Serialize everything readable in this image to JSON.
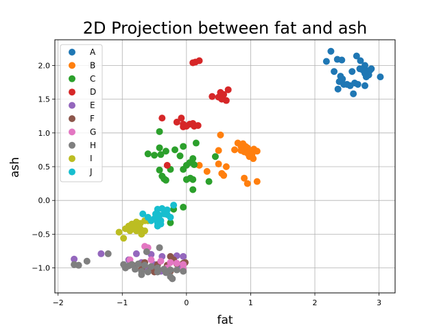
{
  "chart_data": {
    "type": "scatter",
    "title": "2D Projection between fat and ash",
    "xlabel": "fat",
    "ylabel": "ash",
    "xlim": [
      -2.05,
      3.25
    ],
    "ylim": [
      -1.37,
      2.38
    ],
    "xticks": [
      -2,
      -1,
      0,
      1,
      2,
      3
    ],
    "xtick_labels": [
      "−2",
      "−1",
      "0",
      "1",
      "2",
      "3"
    ],
    "yticks": [
      -1.0,
      -0.5,
      0.0,
      0.5,
      1.0,
      1.5,
      2.0
    ],
    "ytick_labels": [
      "−1.0",
      "−0.5",
      "0.0",
      "0.5",
      "1.0",
      "1.5",
      "2.0"
    ],
    "grid": true,
    "legend_position": "top-left",
    "series": [
      {
        "name": "A",
        "color": "#1f77b4",
        "points": [
          [
            2.25,
            2.21
          ],
          [
            2.18,
            2.06
          ],
          [
            2.35,
            2.09
          ],
          [
            2.42,
            2.08
          ],
          [
            2.65,
            2.14
          ],
          [
            2.71,
            2.07
          ],
          [
            2.78,
            2.0
          ],
          [
            2.3,
            1.91
          ],
          [
            2.58,
            1.91
          ],
          [
            2.7,
            1.95
          ],
          [
            2.75,
            1.93
          ],
          [
            2.82,
            1.92
          ],
          [
            2.86,
            1.93
          ],
          [
            2.78,
            1.88
          ],
          [
            2.84,
            1.86
          ],
          [
            2.8,
            1.83
          ],
          [
            2.4,
            1.84
          ],
          [
            2.43,
            1.8
          ],
          [
            2.38,
            1.76
          ],
          [
            2.45,
            1.72
          ],
          [
            2.55,
            1.7
          ],
          [
            2.62,
            1.74
          ],
          [
            2.67,
            1.72
          ],
          [
            2.78,
            1.7
          ],
          [
            2.36,
            1.65
          ],
          [
            2.6,
            1.58
          ],
          [
            3.02,
            1.83
          ],
          [
            2.5,
            1.72
          ],
          [
            2.88,
            1.95
          ]
        ]
      },
      {
        "name": "B",
        "color": "#ff7f0e",
        "points": [
          [
            0.53,
            0.97
          ],
          [
            0.8,
            0.85
          ],
          [
            0.88,
            0.84
          ],
          [
            0.92,
            0.8
          ],
          [
            0.85,
            0.8
          ],
          [
            0.95,
            0.78
          ],
          [
            0.75,
            0.75
          ],
          [
            1.0,
            0.74
          ],
          [
            1.05,
            0.76
          ],
          [
            1.1,
            0.73
          ],
          [
            0.9,
            0.72
          ],
          [
            0.95,
            0.7
          ],
          [
            1.02,
            0.68
          ],
          [
            0.98,
            0.65
          ],
          [
            1.04,
            0.62
          ],
          [
            0.5,
            0.74
          ],
          [
            0.2,
            0.52
          ],
          [
            0.5,
            0.54
          ],
          [
            0.62,
            0.5
          ],
          [
            0.32,
            0.43
          ],
          [
            0.55,
            0.4
          ],
          [
            0.58,
            0.37
          ],
          [
            0.9,
            0.33
          ],
          [
            0.95,
            0.25
          ],
          [
            1.1,
            0.28
          ],
          [
            0.85,
            0.74
          ]
        ]
      },
      {
        "name": "C",
        "color": "#2ca02c",
        "points": [
          [
            -0.42,
            1.02
          ],
          [
            -0.42,
            0.78
          ],
          [
            -0.32,
            0.73
          ],
          [
            -0.18,
            0.75
          ],
          [
            -0.05,
            0.8
          ],
          [
            0.15,
            0.85
          ],
          [
            -0.6,
            0.69
          ],
          [
            -0.5,
            0.67
          ],
          [
            -0.4,
            0.68
          ],
          [
            -0.1,
            0.66
          ],
          [
            0.1,
            0.62
          ],
          [
            0.05,
            0.56
          ],
          [
            0.45,
            0.65
          ],
          [
            0.12,
            0.53
          ],
          [
            0.0,
            0.52
          ],
          [
            -0.05,
            0.46
          ],
          [
            -0.42,
            0.45
          ],
          [
            -0.25,
            0.46
          ],
          [
            -0.38,
            0.36
          ],
          [
            -0.35,
            0.32
          ],
          [
            -0.32,
            0.3
          ],
          [
            0.0,
            0.31
          ],
          [
            0.06,
            0.33
          ],
          [
            0.1,
            0.31
          ],
          [
            0.35,
            0.28
          ],
          [
            0.1,
            0.16
          ],
          [
            -0.05,
            -0.1
          ],
          [
            -0.2,
            -0.13
          ],
          [
            -0.25,
            -0.33
          ]
        ]
      },
      {
        "name": "D",
        "color": "#d62728",
        "points": [
          [
            0.1,
            2.04
          ],
          [
            0.14,
            2.05
          ],
          [
            0.2,
            2.07
          ],
          [
            0.53,
            1.6
          ],
          [
            0.58,
            1.57
          ],
          [
            0.65,
            1.64
          ],
          [
            0.4,
            1.54
          ],
          [
            0.5,
            1.53
          ],
          [
            0.55,
            1.5
          ],
          [
            0.62,
            1.48
          ],
          [
            -0.38,
            1.22
          ],
          [
            -0.08,
            1.22
          ],
          [
            -0.15,
            1.16
          ],
          [
            -0.05,
            1.13
          ],
          [
            0.05,
            1.13
          ],
          [
            0.1,
            1.14
          ],
          [
            0.12,
            1.1
          ],
          [
            0.18,
            1.11
          ],
          [
            -0.05,
            1.09
          ],
          [
            -0.3,
            0.52
          ],
          [
            0.0,
            1.1
          ]
        ]
      },
      {
        "name": "E",
        "color": "#9467bd",
        "points": [
          [
            -1.75,
            -0.87
          ],
          [
            -1.33,
            -0.79
          ],
          [
            -0.78,
            -0.79
          ],
          [
            -0.55,
            -0.8
          ],
          [
            -0.38,
            -0.83
          ],
          [
            -0.15,
            -0.82
          ],
          [
            -0.05,
            -0.83
          ],
          [
            -0.9,
            -0.88
          ],
          [
            -0.7,
            -0.92
          ],
          [
            -0.5,
            -0.95
          ],
          [
            -0.3,
            -0.98
          ],
          [
            -0.1,
            -1.0
          ],
          [
            -0.6,
            -1.02
          ],
          [
            -0.4,
            -1.05
          ]
        ]
      },
      {
        "name": "F",
        "color": "#8c564b",
        "points": [
          [
            -0.65,
            -0.92
          ],
          [
            -0.45,
            -0.95
          ],
          [
            -0.25,
            -0.83
          ],
          [
            -0.2,
            -0.88
          ],
          [
            -0.15,
            -0.94
          ],
          [
            -0.05,
            -0.93
          ],
          [
            -0.3,
            -0.96
          ],
          [
            -0.55,
            -1.0
          ],
          [
            -0.35,
            -1.02
          ],
          [
            -0.25,
            -1.05
          ],
          [
            -0.8,
            -0.97
          ],
          [
            -0.7,
            -1.02
          ],
          [
            -0.5,
            -1.06
          ],
          [
            -0.02,
            -0.92
          ]
        ]
      },
      {
        "name": "G",
        "color": "#e377c2",
        "points": [
          [
            -0.65,
            -0.68
          ],
          [
            -0.6,
            -0.7
          ],
          [
            -0.88,
            -0.88
          ],
          [
            -0.55,
            -0.88
          ],
          [
            -0.4,
            -0.9
          ],
          [
            -0.25,
            -0.92
          ],
          [
            -0.15,
            -0.93
          ],
          [
            -0.05,
            -0.95
          ],
          [
            -0.3,
            -1.0
          ],
          [
            -0.05,
            -1.02
          ]
        ]
      },
      {
        "name": "H",
        "color": "#7f7f7f",
        "points": [
          [
            -1.75,
            -0.95
          ],
          [
            -1.68,
            -0.96
          ],
          [
            -1.55,
            -0.9
          ],
          [
            -1.22,
            -0.79
          ],
          [
            -0.62,
            -0.76
          ],
          [
            -0.42,
            -0.7
          ],
          [
            -0.9,
            -0.97
          ],
          [
            -0.85,
            -0.95
          ],
          [
            -0.75,
            -0.94
          ],
          [
            -0.65,
            -0.96
          ],
          [
            -0.55,
            -0.98
          ],
          [
            -0.45,
            -1.0
          ],
          [
            -0.35,
            -1.02
          ],
          [
            -0.25,
            -1.03
          ],
          [
            -0.15,
            -1.03
          ],
          [
            -0.05,
            -1.05
          ],
          [
            -0.95,
            -1.0
          ],
          [
            -0.8,
            -1.02
          ],
          [
            -0.7,
            -1.05
          ],
          [
            -0.6,
            -1.06
          ],
          [
            -0.45,
            -1.06
          ],
          [
            -0.32,
            -1.07
          ],
          [
            -0.25,
            -1.13
          ],
          [
            -0.22,
            -1.16
          ],
          [
            -0.7,
            -1.1
          ],
          [
            -0.98,
            -0.95
          ]
        ]
      },
      {
        "name": "I",
        "color": "#bcbd22",
        "points": [
          [
            -0.78,
            -0.32
          ],
          [
            -0.72,
            -0.34
          ],
          [
            -0.65,
            -0.3
          ],
          [
            -0.6,
            -0.3
          ],
          [
            -0.85,
            -0.35
          ],
          [
            -0.9,
            -0.38
          ],
          [
            -0.8,
            -0.4
          ],
          [
            -0.72,
            -0.42
          ],
          [
            -0.65,
            -0.45
          ],
          [
            -0.95,
            -0.42
          ],
          [
            -0.88,
            -0.45
          ],
          [
            -0.78,
            -0.45
          ],
          [
            -1.05,
            -0.47
          ],
          [
            -0.7,
            -0.5
          ],
          [
            -0.98,
            -0.56
          ],
          [
            -0.85,
            -0.4
          ]
        ]
      },
      {
        "name": "J",
        "color": "#17becf",
        "points": [
          [
            -0.45,
            -0.13
          ],
          [
            -0.38,
            -0.12
          ],
          [
            -0.3,
            -0.14
          ],
          [
            -0.2,
            -0.07
          ],
          [
            -0.68,
            -0.2
          ],
          [
            -0.48,
            -0.2
          ],
          [
            -0.42,
            -0.22
          ],
          [
            -0.35,
            -0.2
          ],
          [
            -0.3,
            -0.21
          ],
          [
            -0.25,
            -0.25
          ],
          [
            -0.6,
            -0.25
          ],
          [
            -0.5,
            -0.27
          ],
          [
            -0.45,
            -0.28
          ],
          [
            -0.4,
            -0.3
          ],
          [
            -0.55,
            -0.3
          ],
          [
            -0.45,
            -0.33
          ],
          [
            -0.4,
            -0.35
          ],
          [
            -0.45,
            -0.38
          ]
        ]
      }
    ]
  }
}
